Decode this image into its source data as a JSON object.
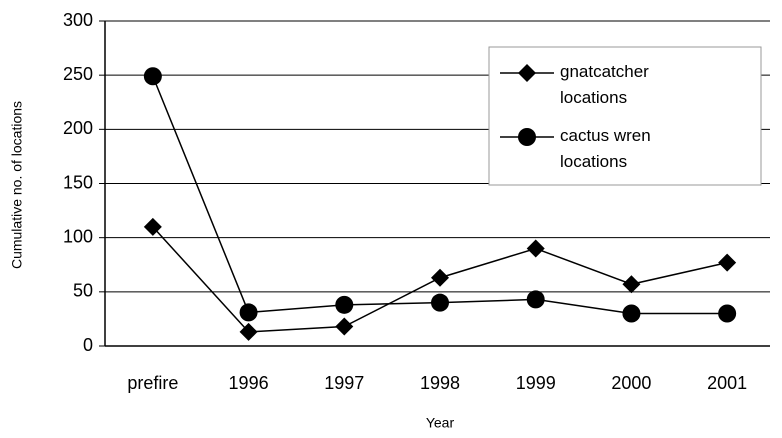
{
  "chart_data": {
    "type": "line",
    "categories": [
      "prefire",
      "1996",
      "1997",
      "1998",
      "1999",
      "2000",
      "2001"
    ],
    "series": [
      {
        "name": "gnatcatcher locations",
        "color": "#000000",
        "marker": "diamond",
        "values": [
          110,
          13,
          18,
          63,
          90,
          57,
          77
        ]
      },
      {
        "name": "cactus wren locations",
        "color": "#000000",
        "marker": "circle",
        "values": [
          249,
          31,
          38,
          40,
          43,
          30,
          30
        ]
      }
    ],
    "xlabel": "Year",
    "ylabel": "Cumulative no. of locations",
    "ylim": [
      0,
      300
    ],
    "yticks": [
      0,
      50,
      100,
      150,
      200,
      250,
      300
    ],
    "grid": true
  }
}
